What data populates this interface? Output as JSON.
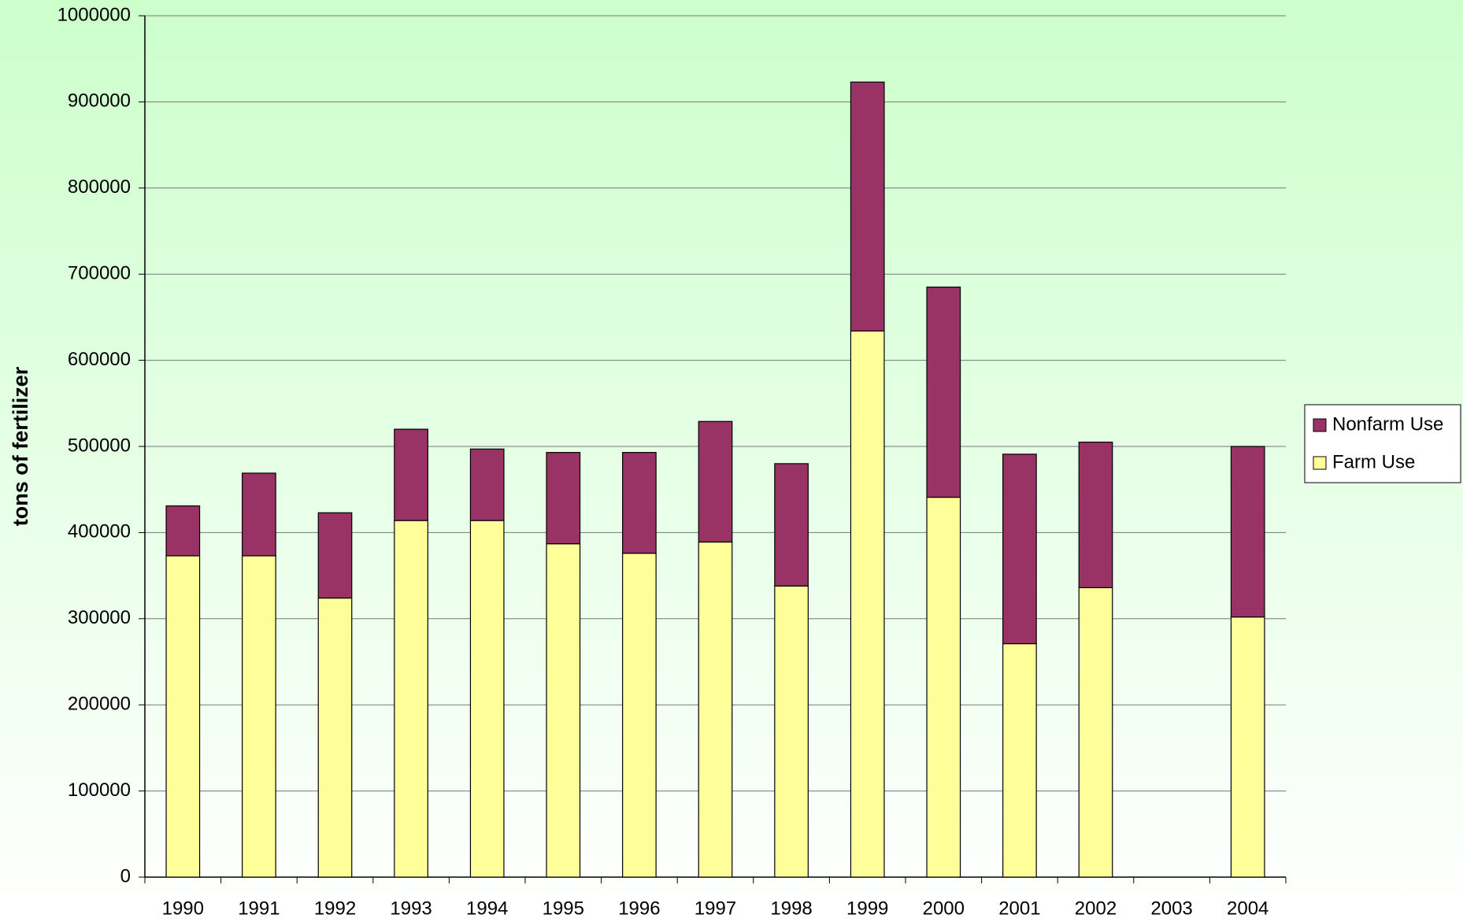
{
  "chart_data": {
    "type": "stacked_bar",
    "y_label": "tons of fertilizer",
    "categories": [
      "1990",
      "1991",
      "1992",
      "1993",
      "1994",
      "1995",
      "1996",
      "1997",
      "1998",
      "1999",
      "2000",
      "2001",
      "2002",
      "2003",
      "2004"
    ],
    "series": [
      {
        "name": "Farm Use",
        "color": "#ffff99",
        "values": [
          373000,
          373000,
          324000,
          414000,
          414000,
          387000,
          376000,
          389000,
          338000,
          634000,
          441000,
          271000,
          336000,
          null,
          302000
        ]
      },
      {
        "name": "Nonfarm Use",
        "color": "#993366",
        "values": [
          58000,
          96000,
          99000,
          106000,
          83000,
          106000,
          117000,
          140000,
          142000,
          289000,
          244000,
          220000,
          169000,
          null,
          198000
        ]
      }
    ],
    "ylim": [
      0,
      1000000
    ],
    "yticks": [
      0,
      100000,
      200000,
      300000,
      400000,
      500000,
      600000,
      700000,
      800000,
      900000,
      1000000
    ],
    "grid": true,
    "legend": "right"
  }
}
